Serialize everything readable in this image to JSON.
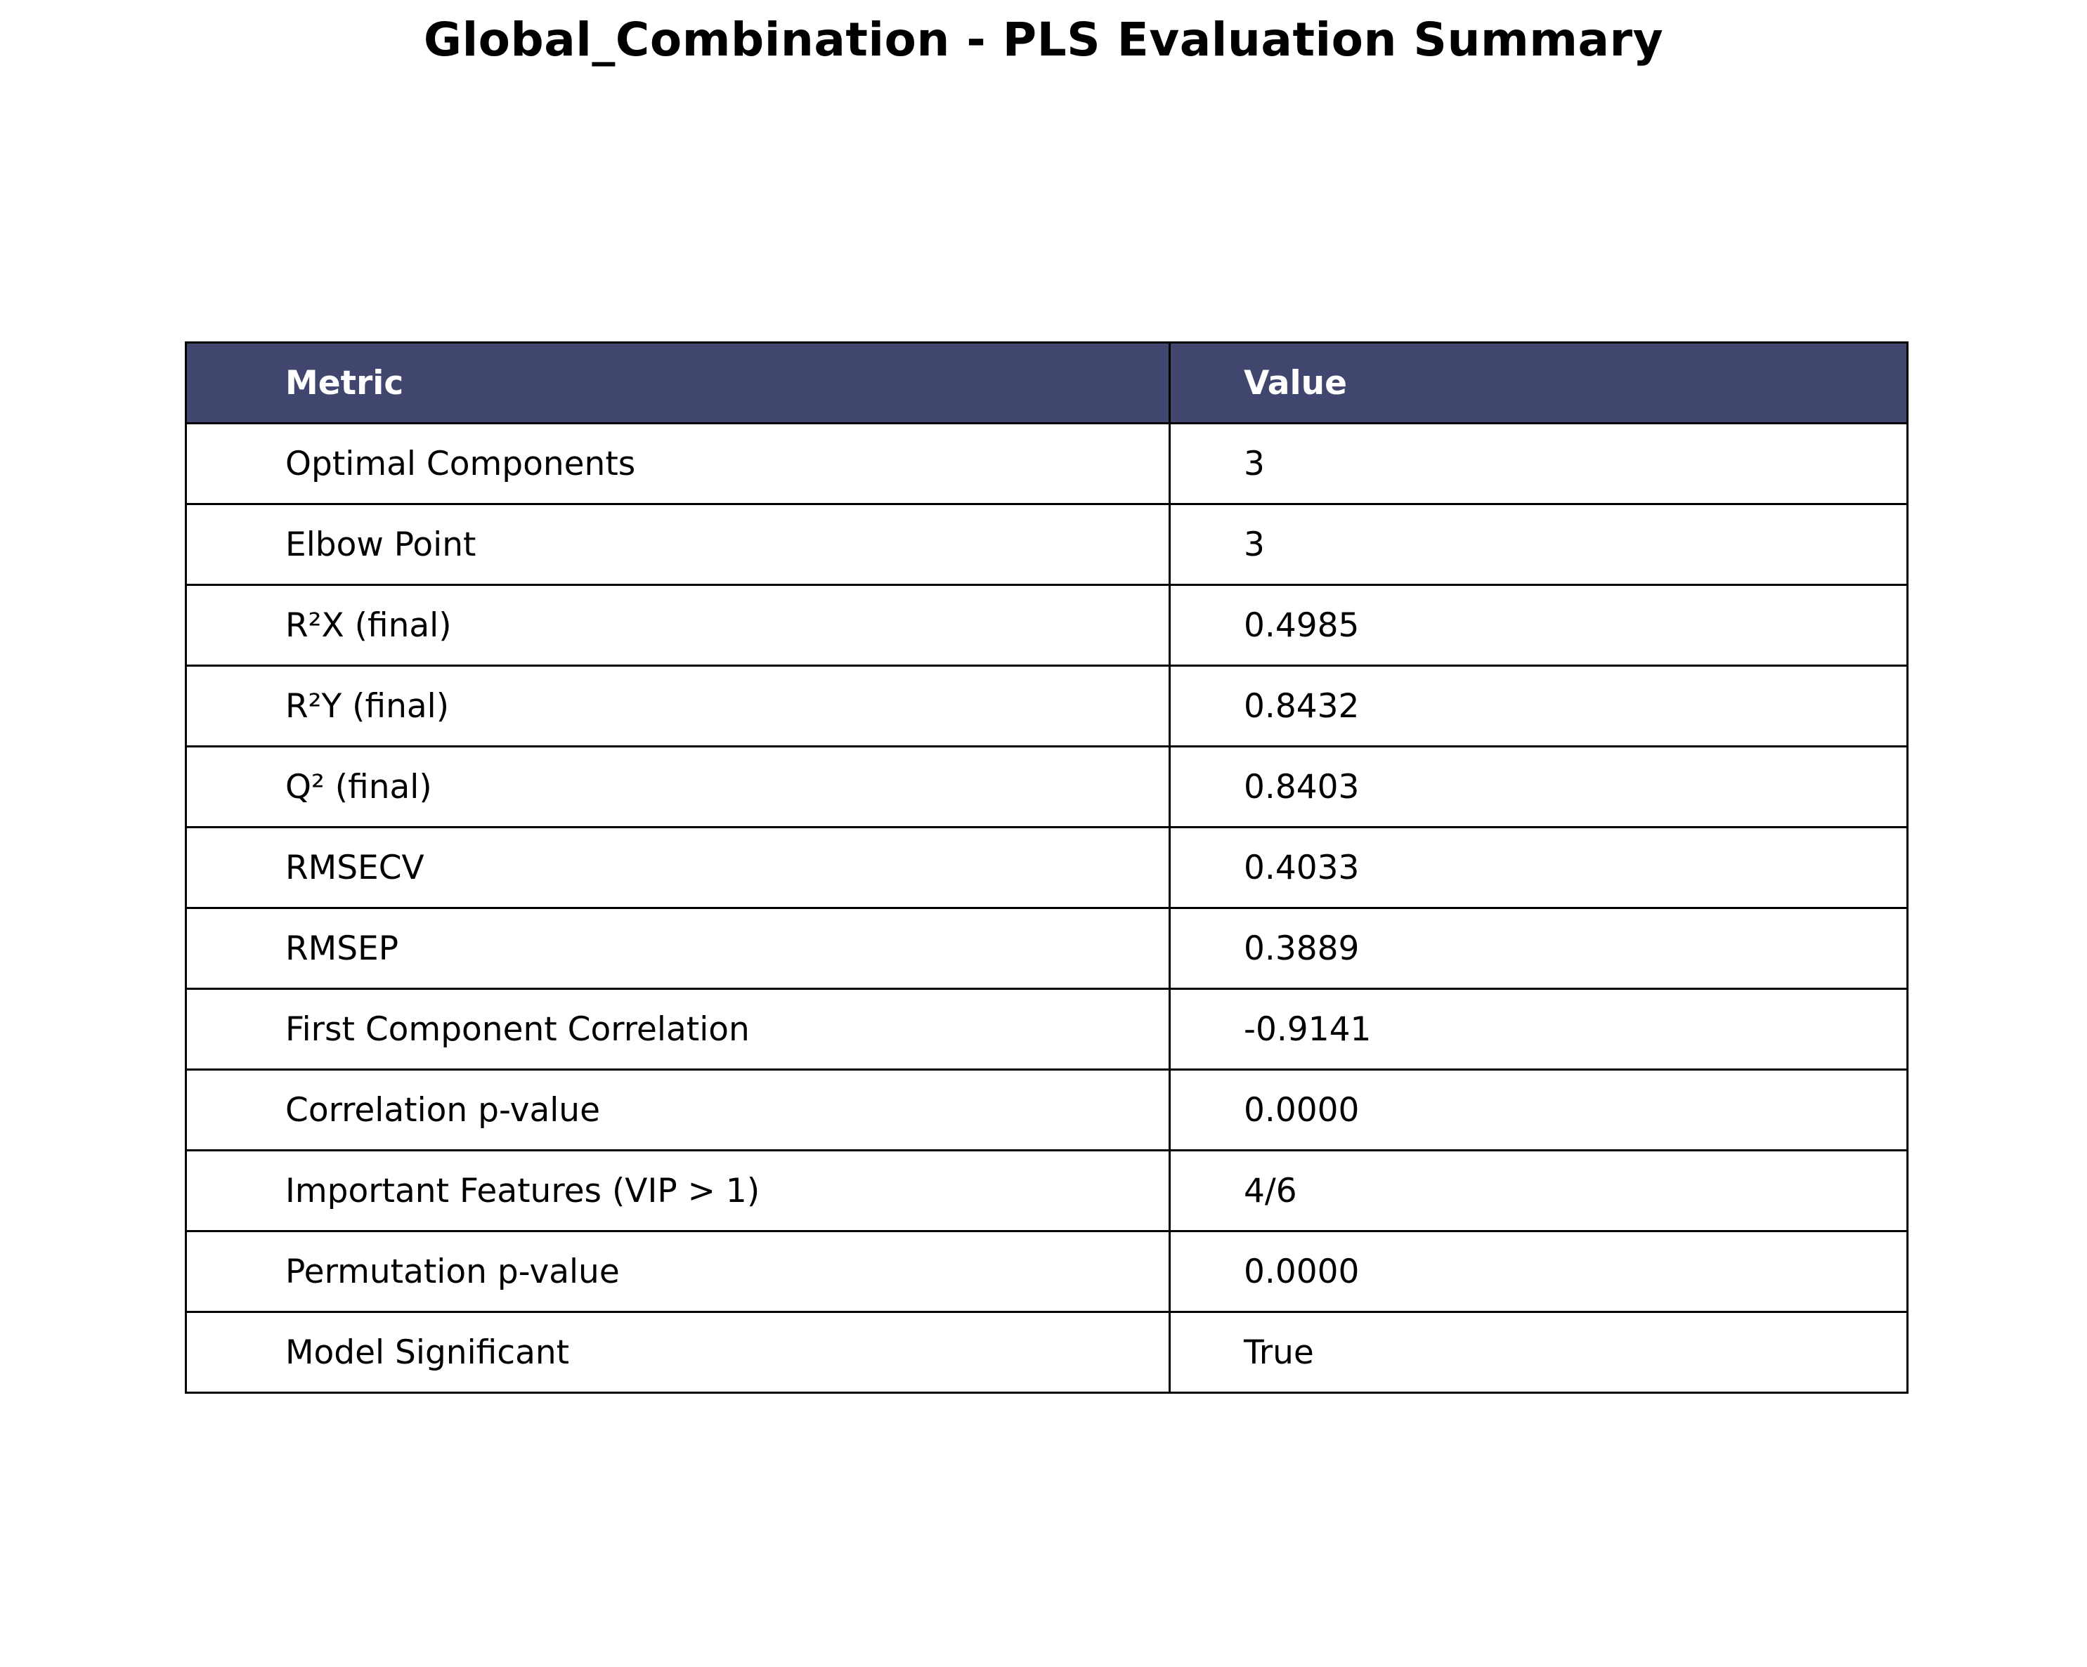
{
  "chart_data": {
    "type": "table",
    "title": "Global_Combination - PLS Evaluation Summary",
    "columns": [
      "Metric",
      "Value"
    ],
    "header_color": "#40466e",
    "rows": [
      {
        "metric": "Optimal Components",
        "value": "3"
      },
      {
        "metric": "Elbow Point",
        "value": "3"
      },
      {
        "metric": "R²X (final)",
        "value": "0.4985"
      },
      {
        "metric": "R²Y (final)",
        "value": "0.8432"
      },
      {
        "metric": "Q² (final)",
        "value": "0.8403"
      },
      {
        "metric": "RMSECV",
        "value": "0.4033"
      },
      {
        "metric": "RMSEP",
        "value": "0.3889"
      },
      {
        "metric": "First Component Correlation",
        "value": "-0.9141"
      },
      {
        "metric": "Correlation p-value",
        "value": "0.0000"
      },
      {
        "metric": "Important Features (VIP > 1)",
        "value": "4/6"
      },
      {
        "metric": "Permutation p-value",
        "value": "0.0000"
      },
      {
        "metric": "Model Significant",
        "value": "True"
      }
    ]
  }
}
